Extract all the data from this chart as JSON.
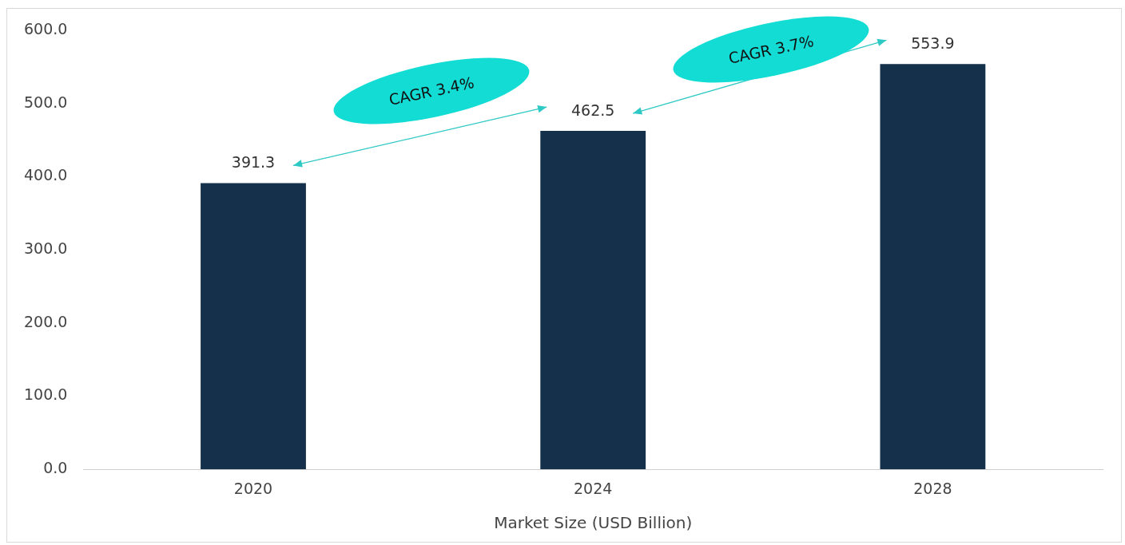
{
  "chart_data": {
    "type": "bar",
    "xlabel": "Market Size (USD Billion)",
    "categories": [
      "2020",
      "2024",
      "2028"
    ],
    "values": [
      391.3,
      462.5,
      553.9
    ],
    "color": "#15304b",
    "ylim": [
      0,
      600
    ],
    "yticks": [
      {
        "value": 0,
        "label": "0.0"
      },
      {
        "value": 100,
        "label": "100.0"
      },
      {
        "value": 200,
        "label": "200.0"
      },
      {
        "value": 300,
        "label": "300.0"
      },
      {
        "value": 400,
        "label": "400.0"
      },
      {
        "value": 500,
        "label": "500.0"
      },
      {
        "value": 600,
        "label": "600.0"
      }
    ],
    "grid": false,
    "legend": false,
    "data_labels": true,
    "annotations": [
      "CAGR 3.4%",
      "CAGR 3.7%"
    ]
  }
}
